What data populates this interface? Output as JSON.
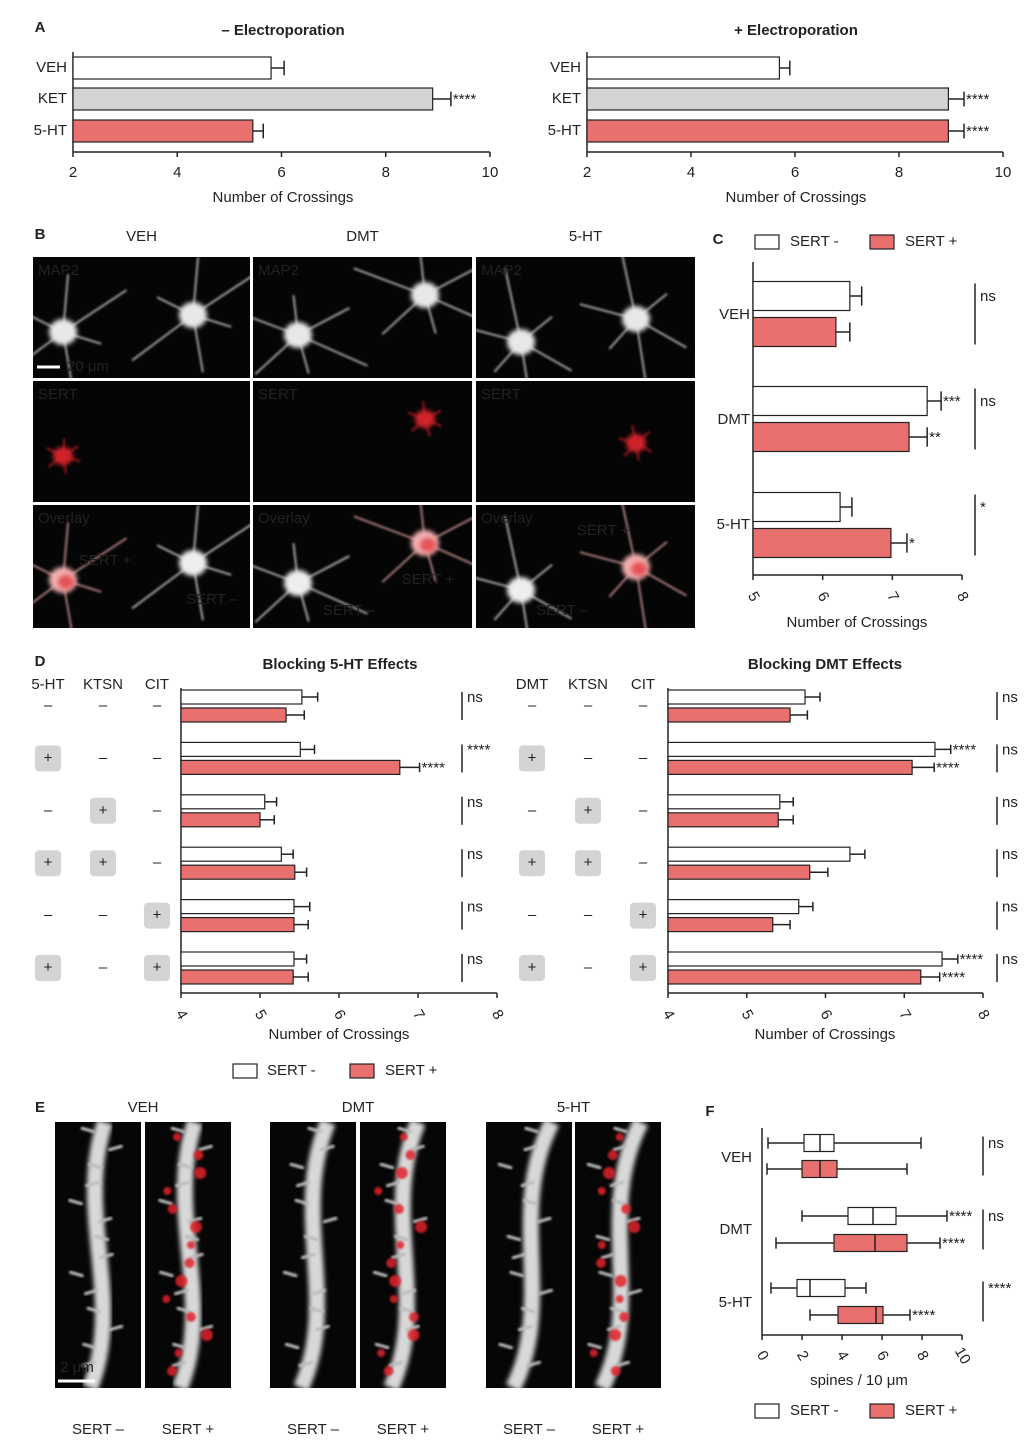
{
  "panel_labels": [
    "A",
    "B",
    "C",
    "D",
    "E",
    "F"
  ],
  "image_panel_b": {
    "columns": [
      "VEH",
      "DMT",
      "5-HT"
    ],
    "rows": [
      "MAP2",
      "SERT",
      "Overlay"
    ],
    "scale_bar": "20 μm",
    "overlay_labels": [
      {
        "positive": "SERT +",
        "negative": "SERT –"
      },
      {
        "positive": "SERT +",
        "negative": "SERT –"
      },
      {
        "positive": "SERT +",
        "negative": "SERT –"
      }
    ]
  },
  "image_panel_e": {
    "columns": [
      "VEH",
      "DMT",
      "5-HT"
    ],
    "channels": [
      "SERT –",
      "SERT +"
    ],
    "scale_bar": "2 μm"
  },
  "chart_data": [
    {
      "type": "bar",
      "title": "– Electroporation",
      "categories": [
        "VEH",
        "KET",
        "5-HT"
      ],
      "values": [
        5.8,
        8.9,
        5.45
      ],
      "errors": [
        0.25,
        0.35,
        0.2
      ],
      "colors": [
        "#ffffff",
        "#d3d3d3",
        "#e8706e"
      ],
      "significance": [
        null,
        "****",
        null
      ],
      "xlim": [
        2,
        10
      ],
      "xticks": [
        2,
        4,
        6,
        8,
        10
      ],
      "xlabel": "Number of Crossings"
    },
    {
      "type": "bar",
      "title": "+ Electroporation",
      "categories": [
        "VEH",
        "KET",
        "5-HT"
      ],
      "values": [
        5.7,
        8.95,
        8.95
      ],
      "errors": [
        0.2,
        0.3,
        0.3
      ],
      "colors": [
        "#ffffff",
        "#d3d3d3",
        "#e8706e"
      ],
      "significance": [
        null,
        "****",
        "****"
      ],
      "xlim": [
        2,
        10
      ],
      "xticks": [
        2,
        4,
        6,
        8,
        10
      ],
      "xlabel": "Number of Crossings"
    },
    {
      "type": "bar",
      "categories": [
        "VEH",
        "DMT",
        "5-HT"
      ],
      "series": [
        {
          "name": "SERT -",
          "color": "#ffffff",
          "values": [
            6.39,
            7.5,
            6.25
          ],
          "errors": [
            0.17,
            0.2,
            0.17
          ],
          "significance": [
            null,
            "***",
            null
          ]
        },
        {
          "name": "SERT +",
          "color": "#e8706e",
          "values": [
            6.19,
            7.24,
            6.98
          ],
          "errors": [
            0.2,
            0.26,
            0.23
          ],
          "significance": [
            null,
            "**",
            "*"
          ]
        }
      ],
      "brackets": [
        "ns",
        "ns",
        "*"
      ],
      "xlim": [
        5,
        8
      ],
      "xticks": [
        5,
        6,
        7,
        8
      ],
      "xlabel": "Number of Crossings",
      "legend": "top"
    },
    {
      "type": "bar",
      "title": "Blocking 5-HT Effects",
      "conditions": {
        "headers": [
          "5-HT",
          "KTSN",
          "CIT"
        ],
        "rows": [
          [
            "–",
            "–",
            "–"
          ],
          [
            "+",
            "–",
            "–"
          ],
          [
            "–",
            "+",
            "–"
          ],
          [
            "+",
            "+",
            "–"
          ],
          [
            "–",
            "–",
            "+"
          ],
          [
            "+",
            "–",
            "+"
          ]
        ]
      },
      "series": [
        {
          "name": "SERT -",
          "color": "#ffffff",
          "values": [
            5.53,
            5.51,
            5.06,
            5.27,
            5.43,
            5.43
          ],
          "errors": [
            0.2,
            0.18,
            0.15,
            0.15,
            0.2,
            0.16
          ],
          "significance": [
            null,
            null,
            null,
            null,
            null,
            null
          ]
        },
        {
          "name": "SERT +",
          "color": "#e8706e",
          "values": [
            5.33,
            6.77,
            5.0,
            5.44,
            5.43,
            5.42
          ],
          "errors": [
            0.23,
            0.25,
            0.18,
            0.15,
            0.18,
            0.19
          ],
          "significance": [
            null,
            "****",
            null,
            null,
            null,
            null
          ]
        }
      ],
      "brackets": [
        "ns",
        "****",
        "ns",
        "ns",
        "ns",
        "ns"
      ],
      "xlim": [
        4,
        8
      ],
      "xticks": [
        4,
        5,
        6,
        7,
        8
      ],
      "xlabel": "Number of Crossings",
      "legend": "bottom"
    },
    {
      "type": "bar",
      "title": "Blocking DMT Effects",
      "conditions": {
        "headers": [
          "DMT",
          "KTSN",
          "CIT"
        ],
        "rows": [
          [
            "–",
            "–",
            "–"
          ],
          [
            "+",
            "–",
            "–"
          ],
          [
            "–",
            "+",
            "–"
          ],
          [
            "+",
            "+",
            "–"
          ],
          [
            "–",
            "–",
            "+"
          ],
          [
            "+",
            "–",
            "+"
          ]
        ]
      },
      "series": [
        {
          "name": "SERT -",
          "color": "#ffffff",
          "values": [
            5.74,
            7.39,
            5.42,
            6.31,
            5.66,
            7.48
          ],
          "errors": [
            0.19,
            0.2,
            0.17,
            0.19,
            0.18,
            0.2
          ],
          "significance": [
            null,
            "****",
            null,
            null,
            null,
            "****"
          ]
        },
        {
          "name": "SERT +",
          "color": "#e8706e",
          "values": [
            5.55,
            7.1,
            5.4,
            5.8,
            5.33,
            7.21
          ],
          "errors": [
            0.22,
            0.28,
            0.19,
            0.23,
            0.22,
            0.24
          ],
          "significance": [
            null,
            "****",
            null,
            null,
            null,
            "****"
          ]
        }
      ],
      "brackets": [
        "ns",
        "ns",
        "ns",
        "ns",
        "ns",
        "ns"
      ],
      "xlim": [
        4,
        8
      ],
      "xticks": [
        4,
        5,
        6,
        7,
        8
      ],
      "xlabel": "Number of Crossings"
    },
    {
      "type": "box",
      "categories": [
        "VEH",
        "DMT",
        "5-HT"
      ],
      "series": [
        {
          "name": "SERT -",
          "color": "#ffffff",
          "boxes": [
            [
              0.3,
              2.1,
              2.9,
              3.6,
              7.95
            ],
            [
              2.0,
              4.3,
              5.55,
              6.7,
              9.25
            ],
            [
              0.45,
              1.75,
              2.4,
              4.15,
              5.2
            ]
          ],
          "significance": [
            null,
            "****",
            null
          ]
        },
        {
          "name": "SERT +",
          "color": "#e8706e",
          "boxes": [
            [
              0.25,
              2.0,
              2.9,
              3.75,
              7.25
            ],
            [
              0.7,
              3.6,
              5.65,
              7.25,
              8.9
            ],
            [
              2.4,
              3.8,
              5.7,
              6.05,
              7.4
            ]
          ],
          "significance": [
            null,
            "****",
            "****"
          ]
        }
      ],
      "brackets": [
        "ns",
        "ns",
        "****"
      ],
      "xlim": [
        0,
        10
      ],
      "xticks": [
        0,
        2,
        4,
        6,
        8,
        10
      ],
      "xlabel": "spines / 10 μm",
      "legend": "bottom"
    }
  ]
}
